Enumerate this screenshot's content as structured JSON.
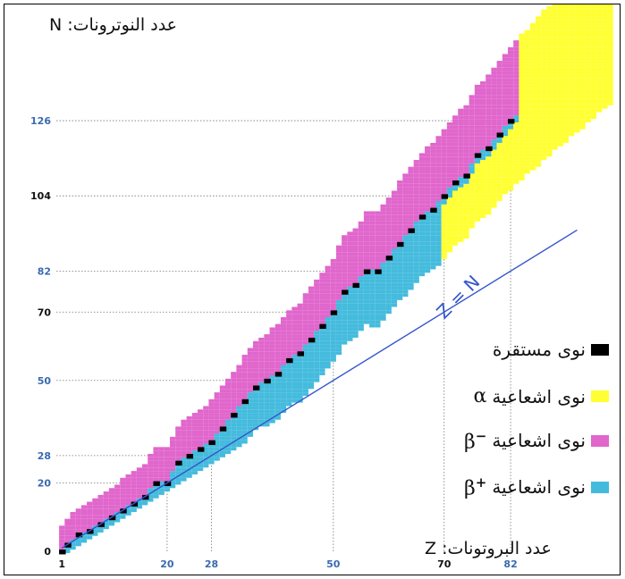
{
  "chart_data": {
    "type": "scatter",
    "title": "",
    "xlabel": "عدد البروتونات: Z",
    "ylabel": "عدد النوترونات: N",
    "xlim": [
      0,
      102
    ],
    "ylim": [
      0,
      160
    ],
    "x_ticks": [
      "1",
      "20",
      "28",
      "50",
      "70",
      "82"
    ],
    "y_ticks": [
      "126",
      "104",
      "82",
      "70",
      "50",
      "28",
      "20",
      "0"
    ],
    "x_tick_values": [
      1,
      20,
      28,
      50,
      70,
      82
    ],
    "y_tick_values": [
      126,
      104,
      82,
      70,
      50,
      28,
      20,
      0
    ],
    "annotations": [
      {
        "text": "Z = N",
        "x": 70,
        "y": 70
      }
    ],
    "legend": {
      "placement": "right",
      "entries": [
        {
          "label": "نوى مستقرة",
          "symbol": "",
          "color": "#000000"
        },
        {
          "label": "نوى اشعاعية",
          "symbol": "α",
          "color": "#ffff33"
        },
        {
          "label": "نوى اشعاعية",
          "symbol": "β",
          "sup": "−",
          "color": "#e066cc"
        },
        {
          "label": "نوى اشعاعية",
          "symbol": "β",
          "sup": "+",
          "color": "#44bbdd"
        }
      ]
    },
    "series": [
      {
        "name": "نوى مستقرة",
        "color": "#000000",
        "points": [
          [
            1,
            0
          ],
          [
            2,
            2
          ],
          [
            4,
            5
          ],
          [
            6,
            6
          ],
          [
            8,
            8
          ],
          [
            10,
            10
          ],
          [
            12,
            12
          ],
          [
            14,
            14
          ],
          [
            16,
            16
          ],
          [
            18,
            20
          ],
          [
            20,
            20
          ],
          [
            22,
            26
          ],
          [
            24,
            28
          ],
          [
            26,
            30
          ],
          [
            28,
            32
          ],
          [
            30,
            36
          ],
          [
            32,
            40
          ],
          [
            34,
            44
          ],
          [
            36,
            48
          ],
          [
            38,
            50
          ],
          [
            40,
            52
          ],
          [
            42,
            56
          ],
          [
            44,
            58
          ],
          [
            46,
            62
          ],
          [
            48,
            66
          ],
          [
            50,
            70
          ],
          [
            52,
            76
          ],
          [
            54,
            78
          ],
          [
            56,
            82
          ],
          [
            58,
            82
          ],
          [
            60,
            86
          ],
          [
            62,
            90
          ],
          [
            64,
            94
          ],
          [
            66,
            98
          ],
          [
            68,
            100
          ],
          [
            70,
            104
          ],
          [
            72,
            108
          ],
          [
            74,
            110
          ],
          [
            76,
            116
          ],
          [
            78,
            118
          ],
          [
            80,
            122
          ],
          [
            82,
            126
          ]
        ]
      },
      {
        "name": "نوى اشعاعية α",
        "color": "#ffff33",
        "region": "heavy nuclei, Z > 70 up to ~102"
      },
      {
        "name": "نوى اشعاعية β−",
        "color": "#e066cc",
        "region": "neutron-rich side, above stability line"
      },
      {
        "name": "نوى اشعاعية β+",
        "color": "#44bbdd",
        "region": "proton-rich side, below stability line"
      }
    ]
  }
}
